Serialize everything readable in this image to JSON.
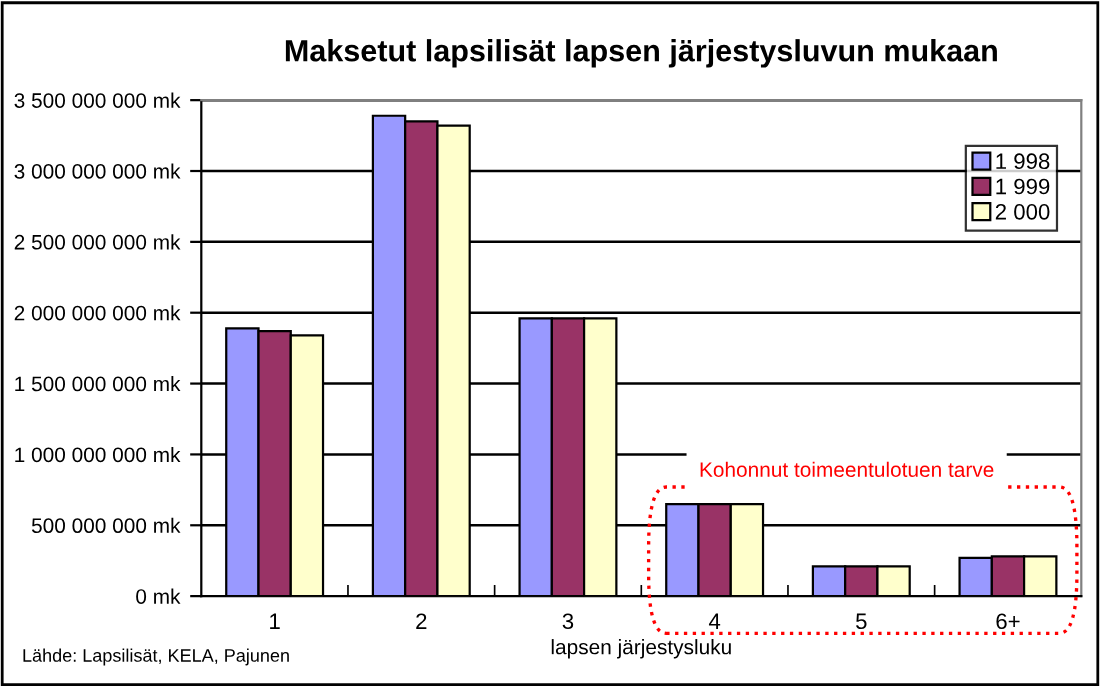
{
  "chart_data": {
    "type": "bar",
    "title": "Maksetut lapsilisät lapsen järjestysluvun mukaan",
    "xlabel": "lapsen järjestysluku",
    "categories": [
      "1",
      "2",
      "3",
      "4",
      "5",
      "6+"
    ],
    "series": [
      {
        "name": "1 998",
        "color": "#9999ff",
        "values": [
          1890000000,
          3390000000,
          1960000000,
          650000000,
          210000000,
          270000000
        ]
      },
      {
        "name": "1 999",
        "color": "#993366",
        "values": [
          1870000000,
          3350000000,
          1960000000,
          650000000,
          210000000,
          280000000
        ]
      },
      {
        "name": "2 000",
        "color": "#ffffcc",
        "values": [
          1840000000,
          3320000000,
          1960000000,
          650000000,
          210000000,
          280000000
        ]
      }
    ],
    "ylim": [
      0,
      3500000000
    ],
    "yticks": [
      {
        "value": 0,
        "label": "0 mk"
      },
      {
        "value": 500000000,
        "label": "500 000 000 mk"
      },
      {
        "value": 1000000000,
        "label": "1 000 000 000 mk"
      },
      {
        "value": 1500000000,
        "label": "1 500 000 000 mk"
      },
      {
        "value": 2000000000,
        "label": "2 000 000 000 mk"
      },
      {
        "value": 2500000000,
        "label": "2 500 000 000 mk"
      },
      {
        "value": 3000000000,
        "label": "3 000 000 000 mk"
      },
      {
        "value": 3500000000,
        "label": "3 500 000 000 mk"
      }
    ],
    "grid": "y",
    "legend": "top right",
    "annotations": [
      "Kohonnut toimeentulotuen tarve",
      "Lähde: Lapsilisät, KELA, Pajunen"
    ]
  }
}
